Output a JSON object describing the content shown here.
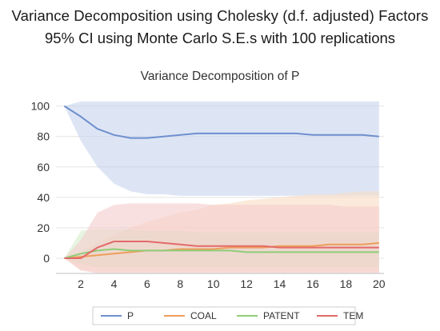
{
  "header": {
    "title": "Variance Decomposition using Cholesky (d.f. adjusted) Factors",
    "subtitle": "95% CI using Monte Carlo S.E.s with 100 replications"
  },
  "chart_data": {
    "type": "area",
    "title": "Variance Decomposition of P",
    "x": [
      1,
      2,
      3,
      4,
      5,
      6,
      7,
      8,
      9,
      10,
      11,
      12,
      13,
      14,
      15,
      16,
      17,
      18,
      19,
      20
    ],
    "xticks": [
      2,
      4,
      6,
      8,
      10,
      12,
      14,
      16,
      18,
      20
    ],
    "yticks": [
      0,
      20,
      40,
      60,
      80,
      100
    ],
    "ylim": [
      -10,
      104
    ],
    "xlim": [
      0.5,
      20.3
    ],
    "grid": true,
    "legend_position": "bottom",
    "series": [
      {
        "name": "P",
        "color": "#6f8fce",
        "fill": "#c7d4ee",
        "values": [
          100,
          93,
          85,
          81,
          79,
          79,
          80,
          81,
          82,
          82,
          82,
          82,
          82,
          82,
          82,
          81,
          81,
          81,
          81,
          80
        ],
        "lower": [
          100,
          77,
          60,
          49,
          44,
          42,
          42,
          41,
          41,
          41,
          41,
          41,
          41,
          41,
          41,
          41,
          41,
          41,
          41,
          41
        ],
        "upper": [
          100,
          103,
          103,
          103,
          103,
          103,
          103,
          103,
          103,
          103,
          103,
          103,
          103,
          103,
          103,
          103,
          103,
          103,
          103,
          103
        ]
      },
      {
        "name": "COAL",
        "color": "#ed9e5a",
        "fill": "#f8dcc3",
        "values": [
          0,
          1,
          2,
          3,
          4,
          5,
          5,
          6,
          6,
          6,
          7,
          7,
          7,
          8,
          8,
          8,
          9,
          9,
          9,
          10
        ],
        "lower": [
          0,
          -8,
          -9,
          -9,
          -9,
          -9,
          -9,
          -9,
          -9,
          -9,
          -9,
          -9,
          -9,
          -9,
          -9,
          -9,
          -9,
          -9,
          -9,
          -9
        ],
        "upper": [
          0,
          4,
          10,
          15,
          20,
          24,
          27,
          30,
          32,
          35,
          36,
          38,
          39,
          40,
          41,
          42,
          42,
          43,
          44,
          44
        ]
      },
      {
        "name": "PATENT",
        "color": "#8fcc78",
        "fill": "#d6edcb",
        "values": [
          0,
          3,
          5,
          6,
          5,
          5,
          5,
          5,
          5,
          5,
          5,
          4,
          4,
          4,
          4,
          4,
          4,
          4,
          4,
          4
        ],
        "lower": [
          0,
          -4,
          -6,
          -6,
          -6,
          -6,
          -6,
          -6,
          -6,
          -6,
          -6,
          -6,
          -6,
          -6,
          -6,
          -6,
          -6,
          -6,
          -6,
          -6
        ],
        "upper": [
          0,
          18,
          19,
          19,
          19,
          18,
          18,
          18,
          17,
          17,
          17,
          17,
          17,
          17,
          17,
          17,
          17,
          17,
          17,
          17
        ]
      },
      {
        "name": "TEM",
        "color": "#e36a6a",
        "fill": "#f5cccc",
        "values": [
          0,
          0,
          7,
          11,
          11,
          11,
          10,
          9,
          8,
          8,
          8,
          8,
          8,
          7,
          7,
          7,
          7,
          7,
          7,
          7
        ],
        "lower": [
          0,
          -8,
          -10,
          -10,
          -10,
          -10,
          -10,
          -10,
          -10,
          -10,
          -10,
          -10,
          -10,
          -10,
          -10,
          -10,
          -10,
          -10,
          -10,
          -10
        ],
        "upper": [
          0,
          12,
          30,
          35,
          36,
          36,
          36,
          36,
          36,
          35,
          35,
          35,
          35,
          35,
          35,
          35,
          35,
          34,
          34,
          34
        ]
      }
    ]
  }
}
